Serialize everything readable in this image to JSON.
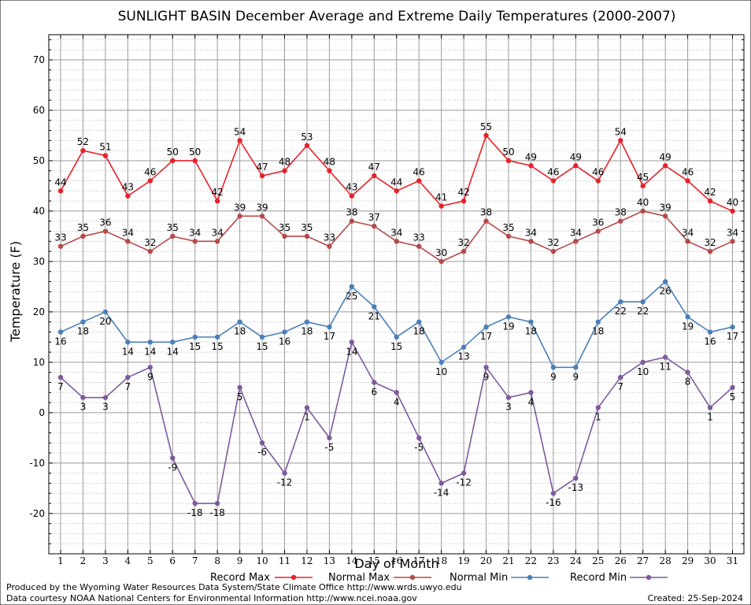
{
  "chart_data": {
    "type": "line",
    "title": "SUNLIGHT BASIN December Average and Extreme Daily Temperatures (2000-2007)",
    "xlabel": "Day of Month",
    "ylabel": "Temperature (F)",
    "ylim": [
      -28,
      75
    ],
    "yticks": [
      -20,
      -10,
      0,
      10,
      20,
      30,
      40,
      50,
      60,
      70
    ],
    "x": [
      1,
      2,
      3,
      4,
      5,
      6,
      7,
      8,
      9,
      10,
      11,
      12,
      13,
      14,
      15,
      16,
      17,
      18,
      19,
      20,
      21,
      22,
      23,
      24,
      25,
      26,
      27,
      28,
      29,
      30,
      31
    ],
    "grid": true,
    "legend_position": "bottom",
    "series": [
      {
        "name": "Record Max",
        "color": "#e8202a",
        "label_position": "above",
        "values": [
          44,
          52,
          51,
          43,
          46,
          50,
          50,
          42,
          54,
          47,
          48,
          53,
          48,
          43,
          47,
          44,
          46,
          41,
          42,
          55,
          50,
          49,
          46,
          49,
          46,
          54,
          45,
          49,
          46,
          42,
          40
        ]
      },
      {
        "name": "Normal Max",
        "color": "#b54a4a",
        "label_position": "above",
        "values": [
          33,
          35,
          36,
          34,
          32,
          35,
          34,
          34,
          39,
          39,
          35,
          35,
          33,
          38,
          37,
          34,
          33,
          30,
          32,
          38,
          35,
          34,
          32,
          34,
          36,
          38,
          40,
          39,
          34,
          32,
          34
        ]
      },
      {
        "name": "Normal Min",
        "color": "#4a7fba",
        "label_position": "below",
        "values": [
          16,
          18,
          20,
          14,
          14,
          14,
          15,
          15,
          18,
          15,
          16,
          18,
          17,
          25,
          21,
          15,
          18,
          10,
          13,
          17,
          19,
          18,
          9,
          9,
          18,
          22,
          22,
          26,
          19,
          16,
          17
        ]
      },
      {
        "name": "Record Min",
        "color": "#7d5a9e",
        "label_position": "below",
        "values": [
          7,
          3,
          3,
          7,
          9,
          -9,
          -18,
          -18,
          5,
          -6,
          -12,
          1,
          -5,
          14,
          6,
          4,
          -5,
          -14,
          -12,
          9,
          3,
          4,
          -16,
          -13,
          1,
          7,
          10,
          11,
          8,
          1,
          5
        ]
      }
    ]
  },
  "credits": {
    "line1": "Produced by the Wyoming Water Resources Data System/State Climate Office http://www.wrds.uwyo.edu",
    "line2": "Data courtesy NOAA National Centers for Environmental Information http://www.ncei.noaa.gov",
    "created": "Created:  25-Sep-2024"
  }
}
